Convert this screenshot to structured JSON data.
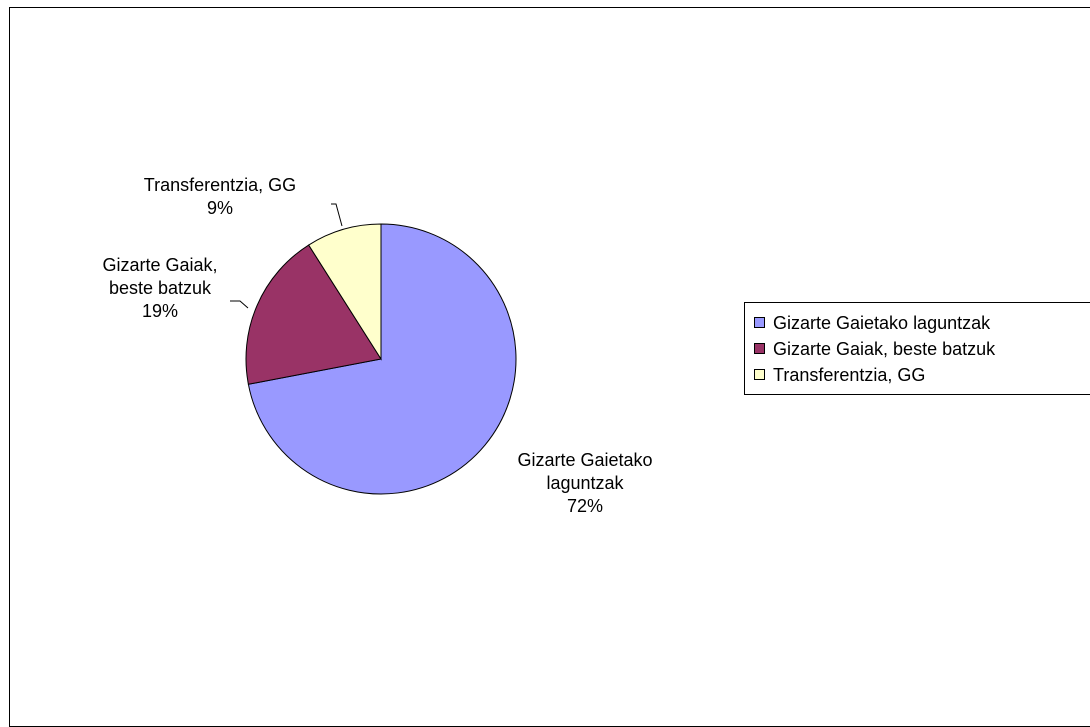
{
  "chart_data": {
    "type": "pie",
    "title": "",
    "slices": [
      {
        "label": "Gizarte Gaietako laguntzak",
        "value": 72,
        "value_label": "72%",
        "color": "#9999ff",
        "data_label": "Gizarte Gaietako\nlaguntzak\n72%"
      },
      {
        "label": "Gizarte Gaiak, beste batzuk",
        "value": 19,
        "value_label": "19%",
        "color": "#993366",
        "data_label": "Gizarte Gaiak,\nbeste batzuk\n19%"
      },
      {
        "label": "Transferentzia, GG",
        "value": 9,
        "value_label": "9%",
        "color": "#ffffcc",
        "data_label": "Transferentzia, GG\n9%"
      }
    ],
    "start_angle": "12 o'clock",
    "direction": "clockwise",
    "legend": {
      "position": "right",
      "entries": [
        "Gizarte Gaietako laguntzak",
        "Gizarte Gaiak, beste batzuk",
        "Transferentzia, GG"
      ]
    }
  }
}
